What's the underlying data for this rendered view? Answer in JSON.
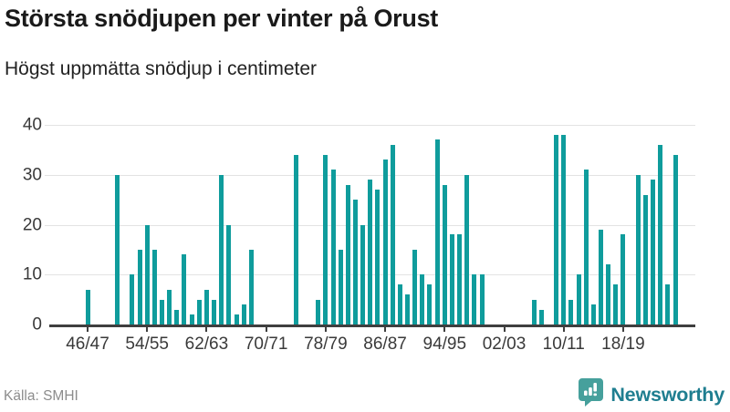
{
  "header": {},
  "chart_data": {
    "type": "bar",
    "title": "Största snödjupen per vinter på Orust",
    "subtitle": "Högst uppmätta snödjup i centimeter",
    "unit": "cm",
    "categories": [
      "46/47",
      "47/48",
      "48/49",
      "49/50",
      "50/51",
      "51/52",
      "52/53",
      "53/54",
      "54/55",
      "55/56",
      "56/57",
      "57/58",
      "58/59",
      "59/60",
      "60/61",
      "61/62",
      "62/63",
      "63/64",
      "64/65",
      "65/66",
      "66/67",
      "67/68",
      "68/69",
      "69/70",
      "70/71",
      "71/72",
      "72/73",
      "73/74",
      "74/75",
      "75/76",
      "76/77",
      "77/78",
      "78/79",
      "79/80",
      "80/81",
      "81/82",
      "82/83",
      "83/84",
      "84/85",
      "85/86",
      "86/87",
      "87/88",
      "88/89",
      "89/90",
      "90/91",
      "91/92",
      "92/93",
      "93/94",
      "94/95",
      "95/96",
      "96/97",
      "97/98",
      "98/99",
      "99/00",
      "00/01",
      "01/02",
      "02/03",
      "03/04",
      "04/05",
      "05/06",
      "06/07",
      "07/08",
      "08/09",
      "09/10",
      "10/11",
      "11/12",
      "12/13",
      "13/14",
      "14/15",
      "15/16",
      "16/17",
      "17/18",
      "18/19",
      "19/20",
      "20/21",
      "21/22",
      "22/23",
      "23/24",
      "24/25",
      "25/26"
    ],
    "values": [
      7,
      0,
      0,
      0,
      30,
      0,
      10,
      15,
      20,
      15,
      5,
      7,
      3,
      14,
      2,
      5,
      7,
      5,
      30,
      20,
      2,
      4,
      15,
      0,
      0,
      0,
      0,
      0,
      34,
      0,
      0,
      5,
      34,
      31,
      15,
      28,
      25,
      20,
      29,
      27,
      33,
      36,
      8,
      6,
      15,
      10,
      8,
      37,
      28,
      18,
      18,
      30,
      10,
      10,
      0,
      0,
      0,
      0,
      0,
      0,
      5,
      3,
      0,
      38,
      38,
      5,
      10,
      31,
      4,
      19,
      12,
      8,
      18,
      0,
      30,
      26,
      29,
      36,
      8,
      34
    ],
    "ylim": [
      0,
      40
    ],
    "yticks": [
      0,
      10,
      20,
      30,
      40
    ],
    "xtick_labels": [
      "46/47",
      "54/55",
      "62/63",
      "70/71",
      "78/79",
      "86/87",
      "94/95",
      "02/03",
      "10/11",
      "18/19"
    ],
    "grid": "horizontal-only",
    "legend": "none"
  },
  "footer": {
    "source": "Källa: SMHI",
    "brand": "Newsworthy"
  },
  "icons": {
    "brand_badge": "bar-chart-badge-icon"
  },
  "colors": {
    "bar": "#0f9c9c",
    "grid": "#e3e3e3",
    "axis": "#3f3f3f",
    "title_text": "#1a1a1a",
    "subtitle_text": "#222222",
    "tick_text": "#3a3a3a",
    "source_text": "#8c8c8c",
    "brand_text": "#1f7e90",
    "brand_badge": "#46a09c"
  }
}
